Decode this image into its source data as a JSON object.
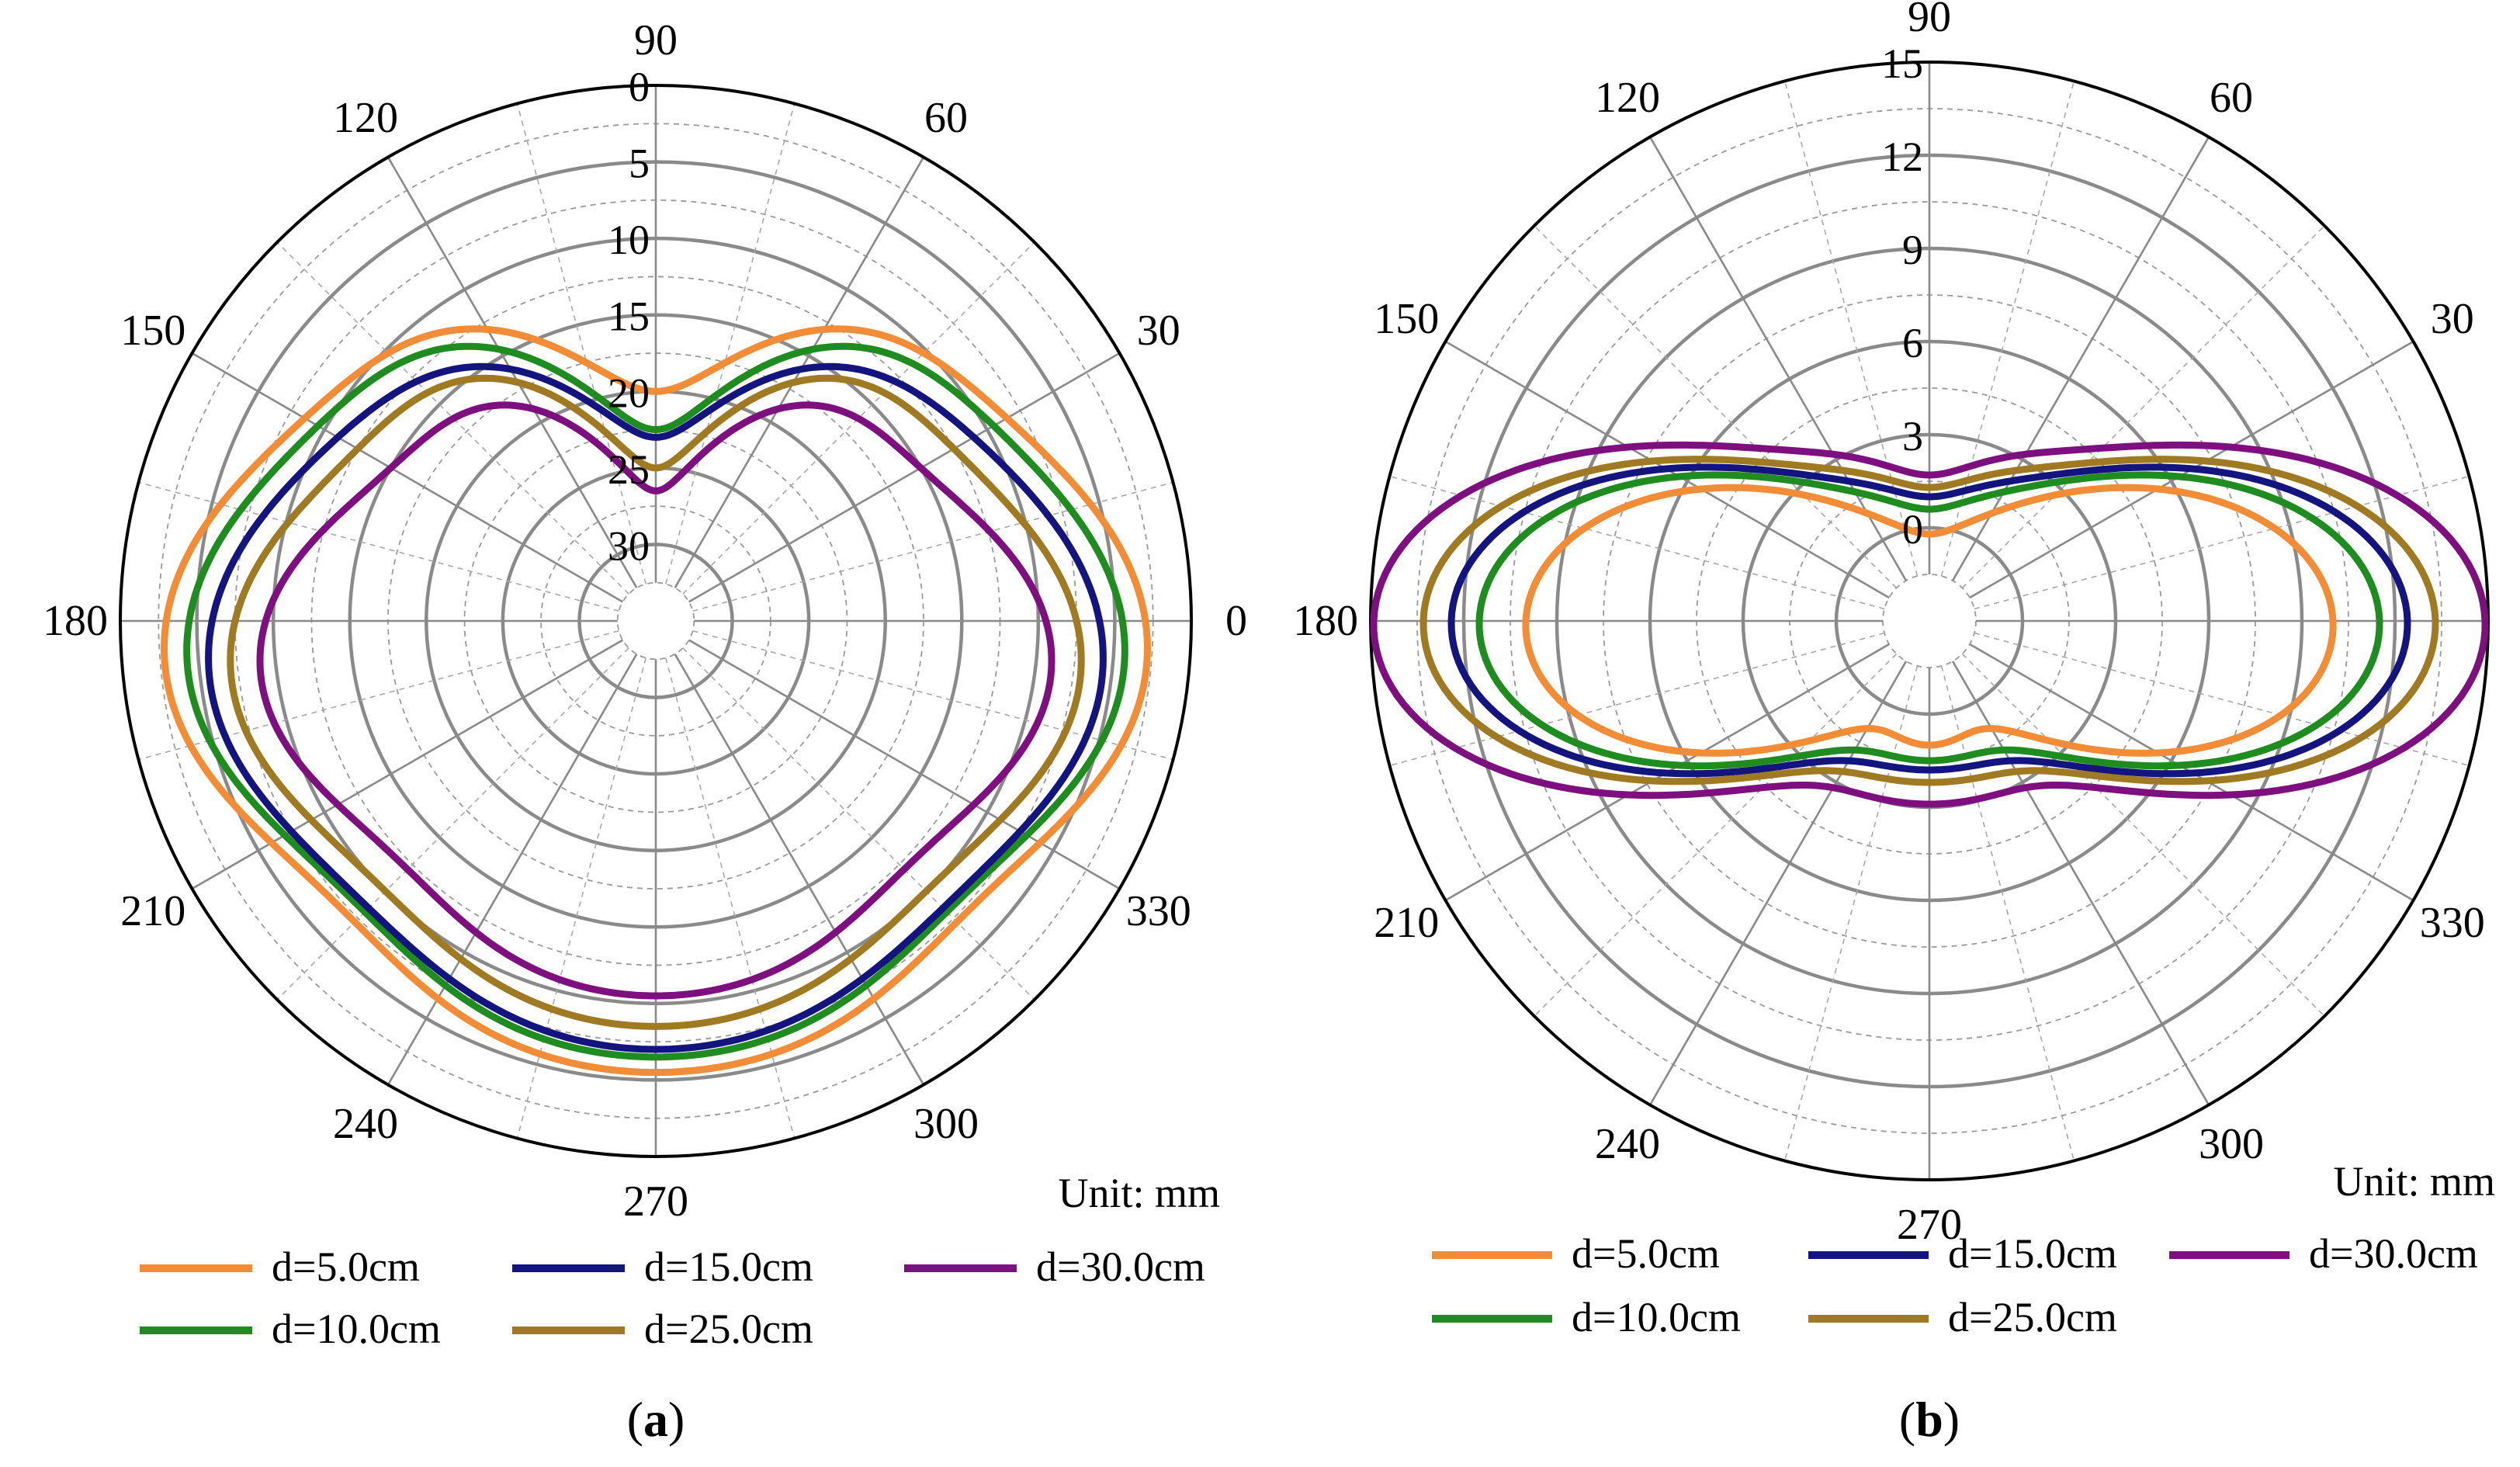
{
  "chart_data": [
    {
      "panel_label": "a",
      "type": "polar-line",
      "unit_label": "Unit: mm",
      "angle_ticks": [
        "0",
        "30",
        "60",
        "90",
        "120",
        "150",
        "180",
        "210",
        "240",
        "270",
        "300",
        "330"
      ],
      "radial_axis": {
        "inverted": true,
        "outer_value": 0,
        "inner_value": 35,
        "ticks": [
          "0",
          "5",
          "10",
          "15",
          "20",
          "25",
          "30"
        ],
        "tick_values": [
          0,
          5,
          10,
          15,
          20,
          25,
          30
        ]
      },
      "theta_samples_deg": [
        0,
        30,
        60,
        90,
        120,
        150,
        180,
        210,
        240,
        270,
        300,
        330
      ],
      "series": [
        {
          "name": "d=5.0cm",
          "color": "#F28C36",
          "values": [
            3.0,
            8.5,
            13.0,
            20.0,
            13.0,
            8.5,
            3.0,
            6.0,
            6.5,
            5.5,
            6.5,
            6.0
          ]
        },
        {
          "name": "d=10.0cm",
          "color": "#1E8C1E",
          "values": [
            4.5,
            9.5,
            14.5,
            22.5,
            14.5,
            9.5,
            4.5,
            7.0,
            7.5,
            6.5,
            7.5,
            7.0
          ]
        },
        {
          "name": "d=15.0cm",
          "color": "#14147F",
          "values": [
            6.0,
            11.0,
            16.0,
            23.0,
            16.0,
            11.0,
            6.0,
            7.5,
            8.0,
            7.0,
            8.0,
            7.5
          ]
        },
        {
          "name": "d=25.0cm",
          "color": "#A07A23",
          "values": [
            7.5,
            12.5,
            17.0,
            25.0,
            17.0,
            12.5,
            7.5,
            9.0,
            9.5,
            8.5,
            9.5,
            9.0
          ]
        },
        {
          "name": "d=30.0cm",
          "color": "#7E0F7E",
          "values": [
            9.5,
            15.0,
            19.0,
            26.5,
            19.0,
            15.0,
            9.5,
            11.0,
            11.5,
            10.5,
            11.5,
            11.0
          ]
        }
      ]
    },
    {
      "panel_label": "b",
      "type": "polar-line",
      "unit_label": "Unit: mm",
      "angle_ticks": [
        "0",
        "30",
        "60",
        "90",
        "120",
        "150",
        "180",
        "210",
        "240",
        "270",
        "300",
        "330"
      ],
      "radial_axis": {
        "inverted": false,
        "min_value": -3,
        "max_value": 15,
        "ticks": [
          "0",
          "3",
          "6",
          "9",
          "12",
          "15"
        ],
        "tick_values": [
          0,
          3,
          6,
          9,
          12,
          15
        ]
      },
      "theta_samples_deg": [
        0,
        30,
        60,
        90,
        120,
        150,
        180,
        210,
        240,
        270,
        300,
        330
      ],
      "series": [
        {
          "name": "d=5.0cm",
          "color": "#F28C36",
          "values": [
            10.0,
            5.5,
            1.0,
            -0.2,
            1.0,
            5.5,
            10.0,
            5.5,
            1.0,
            1.0,
            1.0,
            5.5
          ]
        },
        {
          "name": "d=10.0cm",
          "color": "#1E8C1E",
          "values": [
            11.5,
            6.3,
            1.8,
            0.6,
            1.8,
            6.3,
            11.5,
            6.3,
            1.8,
            1.5,
            1.8,
            6.3
          ]
        },
        {
          "name": "d=15.0cm",
          "color": "#14147F",
          "values": [
            12.4,
            6.8,
            2.2,
            1.0,
            2.2,
            6.8,
            12.4,
            6.8,
            2.2,
            1.8,
            2.2,
            6.8
          ]
        },
        {
          "name": "d=25.0cm",
          "color": "#A07A23",
          "values": [
            13.3,
            7.3,
            2.6,
            1.3,
            2.6,
            7.3,
            13.3,
            7.3,
            2.6,
            2.2,
            2.6,
            7.3
          ]
        },
        {
          "name": "d=30.0cm",
          "color": "#7E0F7E",
          "values": [
            14.9,
            8.2,
            3.2,
            1.7,
            3.2,
            8.2,
            14.9,
            8.2,
            3.2,
            2.9,
            3.2,
            8.2
          ]
        }
      ]
    }
  ]
}
